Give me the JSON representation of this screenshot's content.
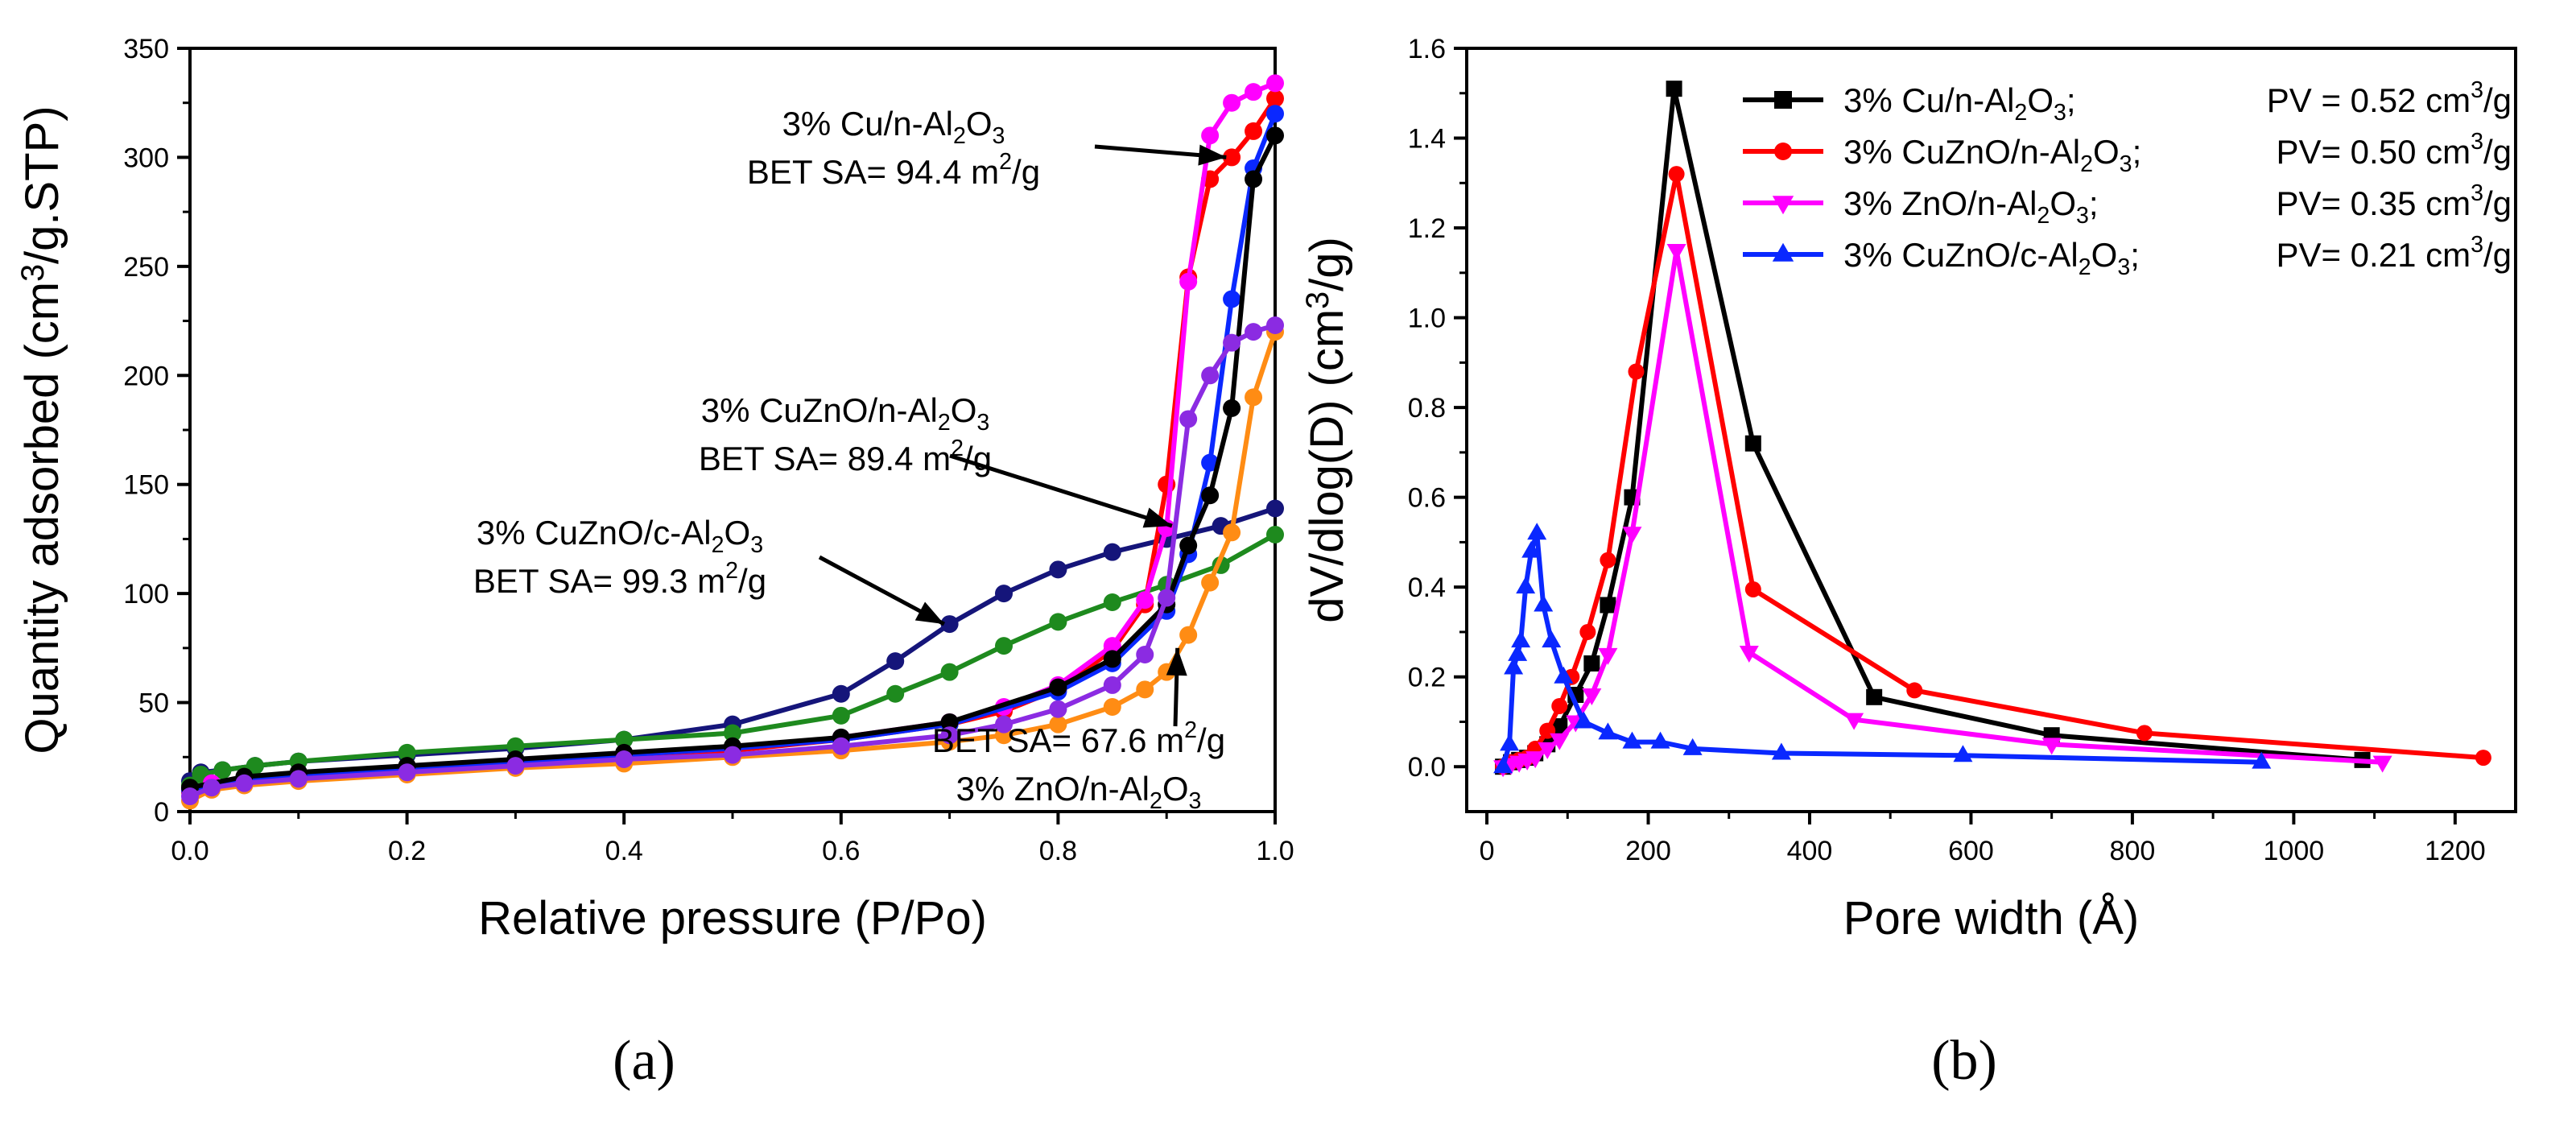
{
  "colors": {
    "navy": "#15157a",
    "green": "#1e8a1e",
    "red": "#ff0000",
    "magenta": "#ff00ff",
    "blue": "#0a28ff",
    "black": "#000000",
    "orange": "#ff8c14",
    "purple": "#8b2be2"
  },
  "chart_data": [
    {
      "type": "line",
      "panel": "a",
      "panel_label": "(a)",
      "xlabel": "Relative pressure (P/Po)",
      "ylabel_parts": [
        "Quantity adsorbed (cm",
        "3",
        "/g.STP)"
      ],
      "xlim": [
        0,
        1
      ],
      "ylim": [
        0,
        350
      ],
      "xticks": [
        "0.0",
        "0.2",
        "0.4",
        "0.6",
        "0.8",
        "1.0"
      ],
      "xtick_values": [
        0,
        0.2,
        0.4,
        0.6,
        0.8,
        1.0
      ],
      "yticks": [
        "0",
        "50",
        "100",
        "150",
        "200",
        "250",
        "300",
        "350"
      ],
      "ytick_values": [
        0,
        50,
        100,
        150,
        200,
        250,
        300,
        350
      ],
      "series": [
        {
          "name": "3% CuZnO/c-Al2O3 (navy)",
          "color": "navy",
          "marker": "circle",
          "x": [
            0.0,
            0.01,
            0.03,
            0.06,
            0.1,
            0.2,
            0.3,
            0.4,
            0.5,
            0.6,
            0.65,
            0.7,
            0.75,
            0.8,
            0.85,
            0.9,
            0.95,
            1.0
          ],
          "y": [
            14,
            18,
            19,
            21,
            23,
            26,
            29,
            33,
            40,
            54,
            69,
            86,
            100,
            111,
            119,
            125,
            131,
            139
          ]
        },
        {
          "name": "3% CuZnO/c-Al2O3 (green)",
          "color": "green",
          "marker": "circle",
          "x": [
            0.0,
            0.01,
            0.03,
            0.06,
            0.1,
            0.2,
            0.3,
            0.4,
            0.5,
            0.6,
            0.65,
            0.7,
            0.75,
            0.8,
            0.85,
            0.9,
            0.95,
            1.0
          ],
          "y": [
            12,
            17,
            19,
            21,
            23,
            27,
            30,
            33,
            36,
            44,
            54,
            64,
            76,
            87,
            96,
            104,
            113,
            127
          ]
        },
        {
          "name": "3% CuZnO/n-Al2O3",
          "color": "red",
          "marker": "circle",
          "x": [
            0.0,
            0.02,
            0.05,
            0.1,
            0.2,
            0.3,
            0.4,
            0.5,
            0.6,
            0.7,
            0.75,
            0.8,
            0.85,
            0.88,
            0.9,
            0.92,
            0.94,
            0.96,
            0.98,
            1.0
          ],
          "y": [
            9,
            12,
            14,
            16,
            19,
            22,
            25,
            28,
            33,
            40,
            46,
            56,
            74,
            95,
            150,
            245,
            290,
            300,
            312,
            327
          ]
        },
        {
          "name": "3% ZnO/n-Al2O3 (magenta)",
          "color": "magenta",
          "marker": "circle",
          "x": [
            0.0,
            0.02,
            0.05,
            0.1,
            0.2,
            0.3,
            0.4,
            0.5,
            0.6,
            0.7,
            0.75,
            0.8,
            0.85,
            0.88,
            0.9,
            0.92,
            0.94,
            0.96,
            0.98,
            1.0
          ],
          "y": [
            10,
            13,
            15,
            17,
            20,
            23,
            26,
            29,
            34,
            41,
            48,
            58,
            76,
            97,
            130,
            243,
            310,
            325,
            330,
            334
          ]
        },
        {
          "name": "3% Cu/n-Al2O3 (blue)",
          "color": "blue",
          "marker": "circle",
          "x": [
            0.0,
            0.05,
            0.1,
            0.2,
            0.3,
            0.4,
            0.5,
            0.6,
            0.7,
            0.8,
            0.85,
            0.9,
            0.92,
            0.94,
            0.96,
            0.98,
            1.0
          ],
          "y": [
            10,
            15,
            17,
            20,
            23,
            26,
            29,
            33,
            40,
            55,
            68,
            92,
            118,
            160,
            235,
            295,
            320
          ]
        },
        {
          "name": "3% Cu/n-Al2O3 (black)",
          "color": "black",
          "marker": "circle",
          "x": [
            0.0,
            0.05,
            0.1,
            0.2,
            0.3,
            0.4,
            0.5,
            0.6,
            0.7,
            0.8,
            0.85,
            0.9,
            0.92,
            0.94,
            0.96,
            0.98,
            1.0
          ],
          "y": [
            11,
            16,
            18,
            21,
            24,
            27,
            30,
            34,
            41,
            57,
            70,
            95,
            122,
            145,
            185,
            290,
            310
          ]
        },
        {
          "name": "3% ZnO/n-Al2O3 (orange)",
          "color": "orange",
          "marker": "circle",
          "x": [
            0.0,
            0.02,
            0.05,
            0.1,
            0.2,
            0.3,
            0.4,
            0.5,
            0.6,
            0.7,
            0.75,
            0.8,
            0.85,
            0.88,
            0.9,
            0.92,
            0.94,
            0.96,
            0.98,
            1.0
          ],
          "y": [
            5,
            10,
            12,
            14,
            17,
            20,
            22,
            25,
            28,
            32,
            35,
            40,
            48,
            56,
            64,
            81,
            105,
            128,
            190,
            220
          ]
        },
        {
          "name": "3% ZnO/n-Al2O3 (purple)",
          "color": "purple",
          "marker": "circle",
          "x": [
            0.0,
            0.02,
            0.05,
            0.1,
            0.2,
            0.3,
            0.4,
            0.5,
            0.6,
            0.7,
            0.75,
            0.8,
            0.85,
            0.88,
            0.9,
            0.92,
            0.94,
            0.96,
            0.98,
            1.0
          ],
          "y": [
            7,
            11,
            13,
            15,
            18,
            21,
            24,
            26,
            30,
            35,
            40,
            47,
            58,
            72,
            98,
            180,
            200,
            215,
            220,
            223
          ]
        }
      ],
      "annotations": [
        {
          "id": "ann-cu",
          "lines": [
            [
              {
                "t": "3% Cu/n-Al"
              },
              {
                "t": "2",
                "s": "sub"
              },
              {
                "t": "O"
              },
              {
                "t": "3",
                "s": "sub"
              }
            ],
            [
              {
                "t": "BET SA= 94.4 m"
              },
              {
                "t": "2",
                "s": "sup"
              },
              {
                "t": "/g"
              }
            ]
          ],
          "arrow_to": [
            0.955,
            300
          ]
        },
        {
          "id": "ann-cuzno-n",
          "lines": [
            [
              {
                "t": "3% CuZnO/n-Al"
              },
              {
                "t": "2",
                "s": "sub"
              },
              {
                "t": "O"
              },
              {
                "t": "3",
                "s": "sub"
              }
            ],
            [
              {
                "t": "BET SA= 89.4 m"
              },
              {
                "t": "2",
                "s": "sup"
              },
              {
                "t": "/g"
              }
            ]
          ],
          "arrow_to": [
            0.905,
            131
          ]
        },
        {
          "id": "ann-cuzno-c",
          "lines": [
            [
              {
                "t": "3% CuZnO/c-Al"
              },
              {
                "t": "2",
                "s": "sub"
              },
              {
                "t": "O"
              },
              {
                "t": "3",
                "s": "sub"
              }
            ],
            [
              {
                "t": "BET SA= 99.3 m"
              },
              {
                "t": "2",
                "s": "sup"
              },
              {
                "t": "/g"
              }
            ]
          ],
          "arrow_to": [
            0.695,
            86
          ]
        },
        {
          "id": "ann-zno",
          "lines": [
            [
              {
                "t": "BET SA= 67.6 m"
              },
              {
                "t": "2",
                "s": "sup"
              },
              {
                "t": "/g"
              }
            ],
            [
              {
                "t": "3% ZnO/n-Al"
              },
              {
                "t": "2",
                "s": "sub"
              },
              {
                "t": "O"
              },
              {
                "t": "3",
                "s": "sub"
              }
            ]
          ],
          "arrow_to": [
            0.91,
            75
          ]
        }
      ]
    },
    {
      "type": "line",
      "panel": "b",
      "panel_label": "(b)",
      "xlabel": "Pore width (Å)",
      "ylabel_parts": [
        "dV/dlog(D) (cm",
        "3",
        "/g)"
      ],
      "xlim": [
        -25,
        1275
      ],
      "ylim": [
        -0.1,
        1.6
      ],
      "xticks": [
        "0",
        "200",
        "400",
        "600",
        "800",
        "1000",
        "1200"
      ],
      "xtick_values": [
        0,
        200,
        400,
        600,
        800,
        1000,
        1200
      ],
      "yticks": [
        "0.0",
        "0.2",
        "0.4",
        "0.6",
        "0.8",
        "1.0",
        "1.2",
        "1.4",
        "1.6"
      ],
      "ytick_values": [
        0,
        0.2,
        0.4,
        0.6,
        0.8,
        1.0,
        1.2,
        1.4,
        1.6
      ],
      "series": [
        {
          "name": "3% Cu/n-Al2O3",
          "color": "black",
          "marker": "square",
          "x": [
            20,
            30,
            40,
            50,
            60,
            75,
            90,
            110,
            130,
            150,
            180,
            232,
            330,
            480,
            700,
            1085
          ],
          "y": [
            0.0,
            0.01,
            0.015,
            0.02,
            0.03,
            0.05,
            0.09,
            0.16,
            0.23,
            0.36,
            0.6,
            1.51,
            0.72,
            0.155,
            0.07,
            0.015
          ]
        },
        {
          "name": "3% CuZnO/n-Al2O3",
          "color": "red",
          "marker": "circle",
          "x": [
            20,
            30,
            40,
            50,
            60,
            75,
            90,
            105,
            125,
            150,
            185,
            235,
            330,
            530,
            815,
            1235
          ],
          "y": [
            0.0,
            0.01,
            0.015,
            0.02,
            0.04,
            0.08,
            0.135,
            0.2,
            0.3,
            0.46,
            0.88,
            1.32,
            0.395,
            0.17,
            0.075,
            0.02
          ]
        },
        {
          "name": "3% ZnO/n-Al2O3",
          "color": "magenta",
          "marker": "triangle-down",
          "x": [
            20,
            30,
            40,
            50,
            60,
            75,
            90,
            110,
            130,
            150,
            180,
            235,
            325,
            455,
            700,
            1110
          ],
          "y": [
            0.0,
            0.005,
            0.01,
            0.015,
            0.02,
            0.04,
            0.06,
            0.1,
            0.16,
            0.25,
            0.52,
            1.15,
            0.255,
            0.105,
            0.05,
            0.01
          ]
        },
        {
          "name": "3% CuZnO/c-Al2O3",
          "color": "blue",
          "marker": "triangle-up",
          "x": [
            20,
            28,
            33,
            38,
            42,
            48,
            55,
            62,
            70,
            80,
            95,
            120,
            150,
            180,
            215,
            255,
            365,
            590,
            960
          ],
          "y": [
            0.0,
            0.05,
            0.22,
            0.25,
            0.28,
            0.4,
            0.48,
            0.52,
            0.36,
            0.28,
            0.2,
            0.1,
            0.075,
            0.055,
            0.055,
            0.04,
            0.03,
            0.025,
            0.01
          ]
        }
      ],
      "legend": {
        "position": "top-right",
        "entries": [
          {
            "color": "black",
            "marker": "square",
            "label": [
              {
                "t": "3% Cu/n-Al"
              },
              {
                "t": "2",
                "s": "sub"
              },
              {
                "t": "O"
              },
              {
                "t": "3",
                "s": "sub"
              },
              {
                "t": ";"
              }
            ],
            "pv": [
              {
                "t": "PV = 0.52 cm"
              },
              {
                "t": "3",
                "s": "sup"
              },
              {
                "t": "/g"
              }
            ]
          },
          {
            "color": "red",
            "marker": "circle",
            "label": [
              {
                "t": "3% CuZnO/n-Al"
              },
              {
                "t": "2",
                "s": "sub"
              },
              {
                "t": "O"
              },
              {
                "t": "3",
                "s": "sub"
              },
              {
                "t": ";"
              }
            ],
            "pv": [
              {
                "t": "PV= 0.50 cm"
              },
              {
                "t": "3",
                "s": "sup"
              },
              {
                "t": "/g"
              }
            ]
          },
          {
            "color": "magenta",
            "marker": "triangle-down",
            "label": [
              {
                "t": "3% ZnO/n-Al"
              },
              {
                "t": "2",
                "s": "sub"
              },
              {
                "t": "O"
              },
              {
                "t": "3",
                "s": "sub"
              },
              {
                "t": ";"
              }
            ],
            "pv": [
              {
                "t": "PV= 0.35 cm"
              },
              {
                "t": "3",
                "s": "sup"
              },
              {
                "t": "/g"
              }
            ]
          },
          {
            "color": "blue",
            "marker": "triangle-up",
            "label": [
              {
                "t": "3% CuZnO/c-Al"
              },
              {
                "t": "2",
                "s": "sub"
              },
              {
                "t": "O"
              },
              {
                "t": "3",
                "s": "sub"
              },
              {
                "t": ";"
              }
            ],
            "pv": [
              {
                "t": "PV= 0.21 cm"
              },
              {
                "t": "3",
                "s": "sup"
              },
              {
                "t": "/g"
              }
            ]
          }
        ]
      }
    }
  ]
}
